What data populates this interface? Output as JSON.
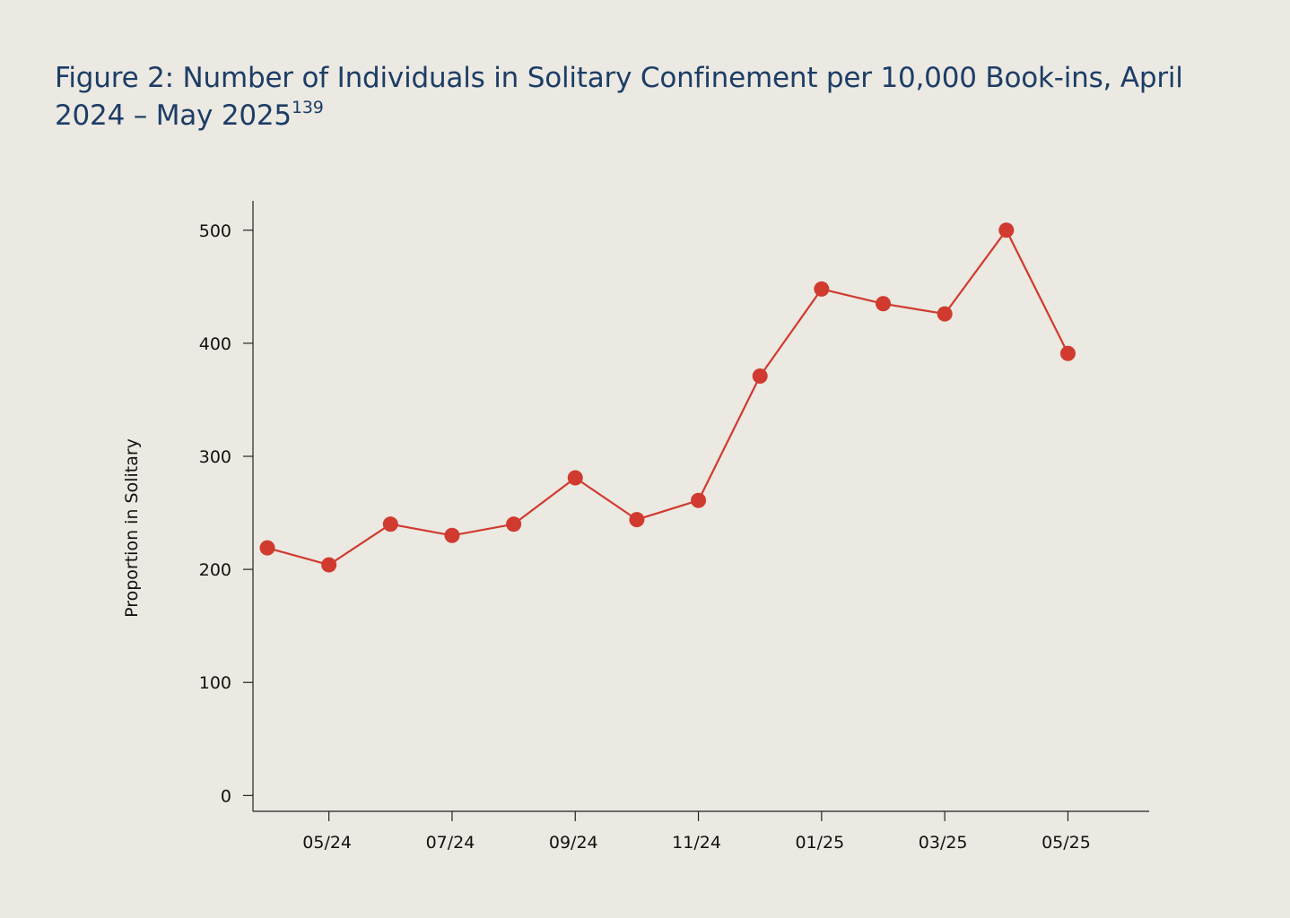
{
  "figure": {
    "title": "Figure 2: Number of Individuals in Solitary Confinement per 10,000 Book-ins, April 2024 – May 2025",
    "footnote": "139"
  },
  "chart_data": {
    "type": "line",
    "title": "Figure 2: Number of Individuals in Solitary Confinement per 10,000 Book-ins, April 2024 – May 2025",
    "xlabel": "",
    "ylabel": "Proportion in Solitary",
    "x": [
      "04/24",
      "05/24",
      "06/24",
      "07/24",
      "08/24",
      "09/24",
      "10/24",
      "11/24",
      "12/24",
      "01/25",
      "02/25",
      "03/25",
      "04/25",
      "05/25"
    ],
    "x_tick_labels": [
      "05/24",
      "07/24",
      "09/24",
      "11/24",
      "01/25",
      "03/25",
      "05/25"
    ],
    "y_ticks": [
      0,
      100,
      200,
      300,
      400,
      500
    ],
    "ylim": [
      -14,
      526
    ],
    "grid": false,
    "series": [
      {
        "name": "Proportion in Solitary",
        "color": "#d03a2f",
        "values": [
          219,
          204,
          240,
          230,
          240,
          281,
          244,
          261,
          371,
          448,
          435,
          426,
          500,
          391
        ]
      }
    ]
  }
}
